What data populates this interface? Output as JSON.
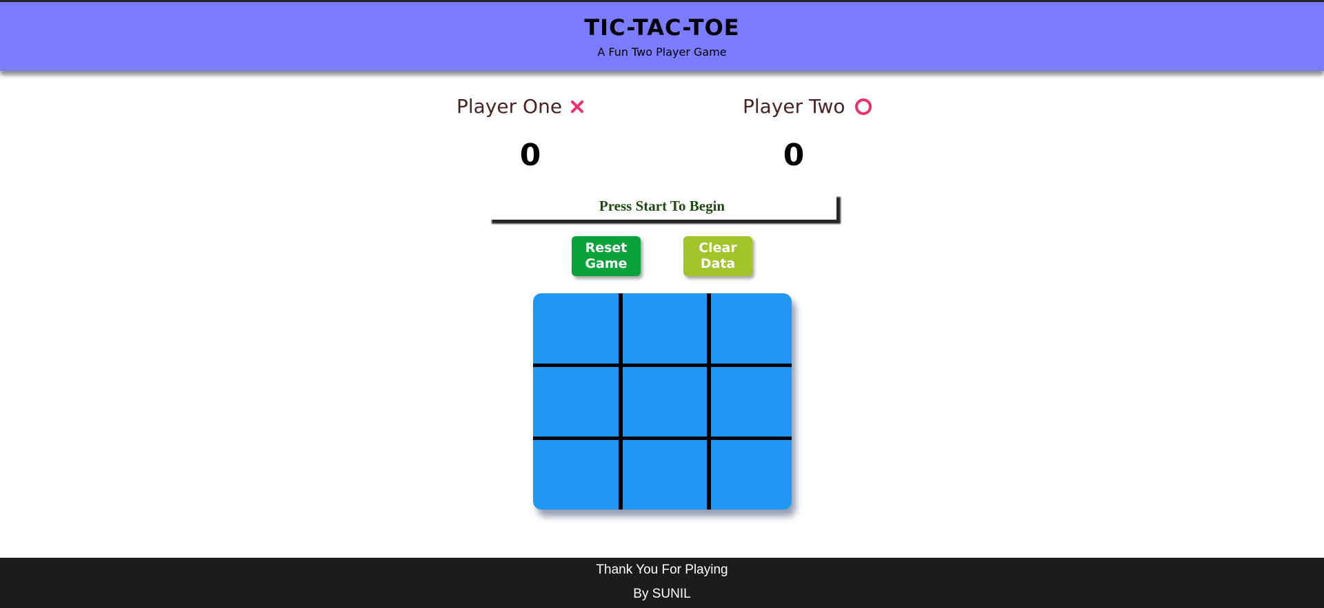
{
  "header": {
    "title": "TIC-TAC-TOE",
    "subtitle": "A Fun Two Player Game"
  },
  "players": [
    {
      "label": "Player One",
      "symbol": "x-icon",
      "score": "0"
    },
    {
      "label": "Player Two",
      "symbol": "o-icon",
      "score": "0"
    }
  ],
  "status": {
    "message": "Press Start To Begin"
  },
  "buttons": {
    "reset_label": "Reset Game",
    "clear_label": "Clear Data"
  },
  "board": {
    "cells": [
      "",
      "",
      "",
      "",
      "",
      "",
      "",
      "",
      ""
    ]
  },
  "footer": {
    "line1": "Thank You For Playing",
    "line2": "By SUNIL"
  },
  "colors": {
    "header_bg": "#7b7cff",
    "board_bg": "#2196f3",
    "mark_color": "#f0306a",
    "reset_bg": "#0aa33a",
    "clear_bg": "#a2c42a",
    "footer_bg": "#1c1c1c"
  }
}
